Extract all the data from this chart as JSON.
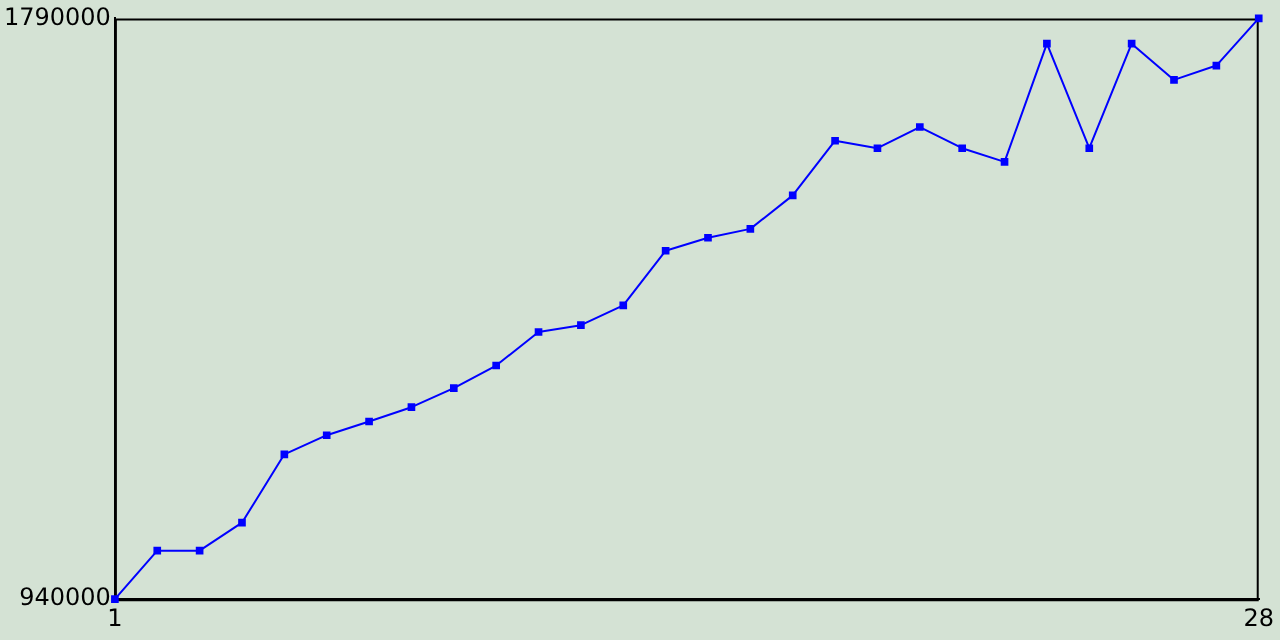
{
  "chart_data": {
    "type": "line",
    "x": [
      1,
      2,
      3,
      4,
      5,
      6,
      7,
      8,
      9,
      10,
      11,
      12,
      13,
      14,
      15,
      16,
      17,
      18,
      19,
      20,
      21,
      22,
      23,
      24,
      25,
      26,
      27,
      28
    ],
    "series": [
      {
        "color": "#0000ff",
        "values": [
          940000,
          1011000,
          1011000,
          1052000,
          1152000,
          1180000,
          1200000,
          1221000,
          1249000,
          1282000,
          1331000,
          1341000,
          1370000,
          1450000,
          1469000,
          1482000,
          1531000,
          1611000,
          1600000,
          1631000,
          1600000,
          1580000,
          1753000,
          1600000,
          1753000,
          1700000,
          1721000,
          1790000
        ]
      }
    ],
    "xlim": [
      1,
      28
    ],
    "xticks": [
      1,
      28
    ],
    "ylim": [
      940000,
      1790000
    ],
    "yticks": [
      940000,
      1790000
    ],
    "grid": false,
    "legend": false,
    "marker": "square",
    "line_style": "solid"
  }
}
